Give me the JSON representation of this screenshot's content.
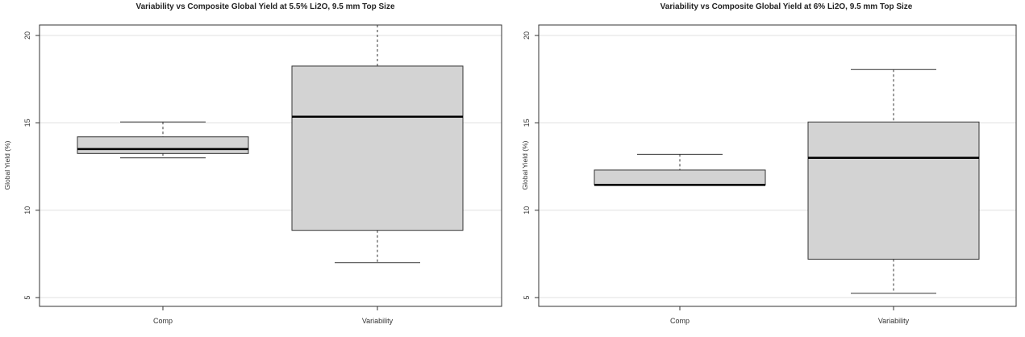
{
  "chart_data": [
    {
      "type": "box",
      "title": "Variability vs Composite Global Yield at 5.5% Li2O, 9.5 mm Top Size",
      "xlabel": "",
      "ylabel": "Global Yield (%)",
      "ylim": [
        4.5,
        20.6
      ],
      "yticks": [
        5,
        10,
        15,
        20
      ],
      "grid": true,
      "categories": [
        "Comp",
        "Variability"
      ],
      "boxes": [
        {
          "min": 13.0,
          "q1": 13.25,
          "median": 13.5,
          "q3": 14.2,
          "max": 15.05
        },
        {
          "min": 7.0,
          "q1": 8.85,
          "median": 15.35,
          "q3": 18.25,
          "max": 20.6
        }
      ]
    },
    {
      "type": "box",
      "title": "Variability vs Composite Global Yield at 6% Li2O, 9.5 mm Top Size",
      "xlabel": "",
      "ylabel": "Global Yield (%)",
      "ylim": [
        4.5,
        20.6
      ],
      "yticks": [
        5,
        10,
        15,
        20
      ],
      "grid": true,
      "categories": [
        "Comp",
        "Variability"
      ],
      "boxes": [
        {
          "min": 11.45,
          "q1": 11.45,
          "median": 11.45,
          "q3": 12.3,
          "max": 13.2
        },
        {
          "min": 5.25,
          "q1": 7.2,
          "median": 13.0,
          "q3": 15.05,
          "max": 18.05
        }
      ]
    }
  ]
}
